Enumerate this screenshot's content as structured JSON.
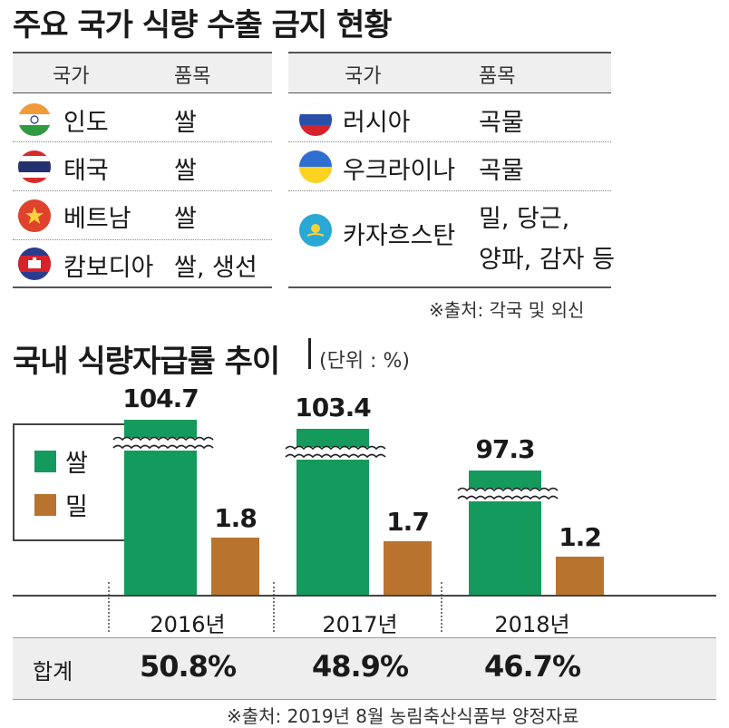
{
  "title_ban": "주요 국가 식량 수출 금지 현황",
  "table_left": {
    "headers": [
      "국가",
      "품목"
    ],
    "rows": [
      {
        "country": "인도",
        "item": "쌀",
        "flag_icon": "india-flag-icon"
      },
      {
        "country": "태국",
        "item": "쌀",
        "flag_icon": "thailand-flag-icon"
      },
      {
        "country": "베트남",
        "item": "쌀",
        "flag_icon": "vietnam-flag-icon"
      },
      {
        "country": "캄보디아",
        "item": "쌀, 생선",
        "flag_icon": "cambodia-flag-icon"
      }
    ]
  },
  "table_right": {
    "headers": [
      "국가",
      "품목"
    ],
    "rows": [
      {
        "country": "러시아",
        "item": "곡물",
        "flag_icon": "russia-flag-icon"
      },
      {
        "country": "우크라이나",
        "item": "곡물",
        "flag_icon": "ukraine-flag-icon"
      },
      {
        "country": "카자흐스탄",
        "item": "밀, 당근,",
        "item2": "양파, 감자 등",
        "flag_icon": "kazakhstan-flag-icon"
      }
    ]
  },
  "source_ban": "※출처: 각국 및 외신",
  "title_chart": "국내 식량자급률 추이",
  "unit": "(단위 : %)",
  "colors": {
    "rice": "#149a5c",
    "wheat": "#b8742f",
    "header_bg": "#efefef",
    "total_bg": "#eeeeee"
  },
  "chart_data": {
    "type": "bar",
    "categories": [
      "2016년",
      "2017년",
      "2018년"
    ],
    "series": [
      {
        "name": "쌀",
        "values": [
          104.7,
          103.4,
          97.3
        ],
        "labels": [
          "104.7",
          "103.4",
          "97.3"
        ],
        "color": "#149a5c"
      },
      {
        "name": "밀",
        "values": [
          1.8,
          1.7,
          1.2
        ],
        "labels": [
          "1.8",
          "1.7",
          "1.2"
        ],
        "color": "#b8742f"
      }
    ],
    "axis_break": true,
    "legend": "left",
    "grid": false
  },
  "total_label": "합계",
  "totals": [
    "50.8%",
    "48.9%",
    "46.7%"
  ],
  "source_chart": "※출처: 2019년 8월 농림축산식품부 양정자료"
}
